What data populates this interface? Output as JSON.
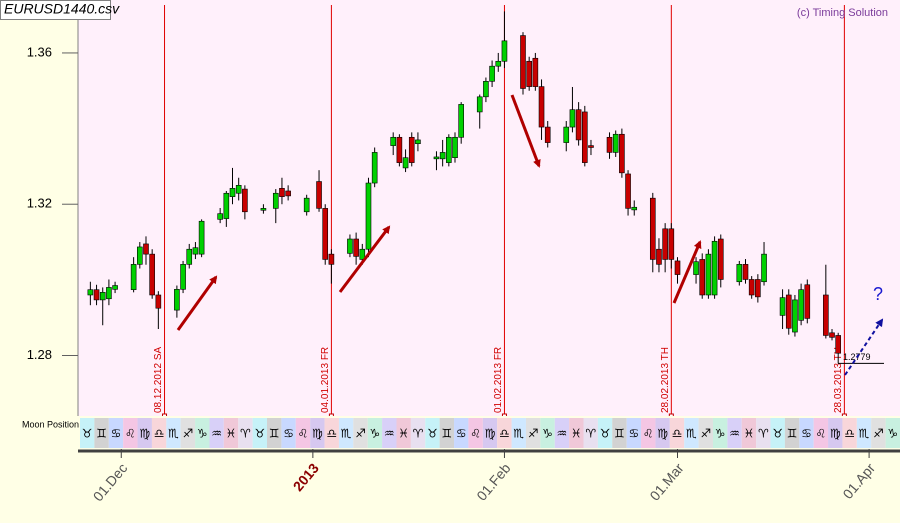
{
  "chart_data": {
    "type": "candlestick",
    "title": "EURUSD1440.csv",
    "credit": "(c) Timing Solution",
    "x": [
      "2012-11-26",
      "2012-11-27",
      "2012-11-28",
      "2012-11-29",
      "2012-11-30",
      "2012-12-03",
      "2012-12-04",
      "2012-12-05",
      "2012-12-06",
      "2012-12-07",
      "2012-12-10",
      "2012-12-11",
      "2012-12-12",
      "2012-12-13",
      "2012-12-14",
      "2012-12-17",
      "2012-12-18",
      "2012-12-19",
      "2012-12-20",
      "2012-12-21",
      "2012-12-24",
      "2012-12-26",
      "2012-12-27",
      "2012-12-28",
      "2012-12-31",
      "2013-01-02",
      "2013-01-03",
      "2013-01-04",
      "2013-01-07",
      "2013-01-08",
      "2013-01-09",
      "2013-01-10",
      "2013-01-11",
      "2013-01-14",
      "2013-01-15",
      "2013-01-16",
      "2013-01-17",
      "2013-01-18",
      "2013-01-21",
      "2013-01-22",
      "2013-01-23",
      "2013-01-24",
      "2013-01-25",
      "2013-01-28",
      "2013-01-29",
      "2013-01-30",
      "2013-01-31",
      "2013-02-01",
      "2013-02-04",
      "2013-02-05",
      "2013-02-06",
      "2013-02-07",
      "2013-02-08",
      "2013-02-11",
      "2013-02-12",
      "2013-02-13",
      "2013-02-14",
      "2013-02-15",
      "2013-02-18",
      "2013-02-19",
      "2013-02-20",
      "2013-02-21",
      "2013-02-22",
      "2013-02-25",
      "2013-02-26",
      "2013-02-27",
      "2013-02-28",
      "2013-03-01",
      "2013-03-04",
      "2013-03-05",
      "2013-03-06",
      "2013-03-07",
      "2013-03-08",
      "2013-03-11",
      "2013-03-12",
      "2013-03-13",
      "2013-03-14",
      "2013-03-15",
      "2013-03-18",
      "2013-03-19",
      "2013-03-20",
      "2013-03-21",
      "2013-03-22",
      "2013-03-25",
      "2013-03-26",
      "2013-03-27"
    ],
    "open": [
      1.296,
      1.2974,
      1.2947,
      1.295,
      1.2975,
      1.2974,
      1.3041,
      1.3095,
      1.3068,
      1.296,
      1.292,
      1.2975,
      1.3041,
      1.3068,
      1.3068,
      1.316,
      1.3162,
      1.322,
      1.3229,
      1.324,
      1.3184,
      1.3189,
      1.3242,
      1.3235,
      1.318,
      1.326,
      1.3189,
      1.3068,
      1.307,
      1.3108,
      1.3054,
      1.3081,
      1.3256,
      1.3355,
      1.3377,
      1.3296,
      1.3377,
      1.336,
      1.332,
      1.332,
      1.331,
      1.3323,
      1.3377,
      1.3444,
      1.3484,
      1.3525,
      1.3565,
      1.3578,
      1.3646,
      1.3578,
      1.3586,
      1.3511,
      1.3404,
      1.3363,
      1.3404,
      1.345,
      1.3444,
      1.3355,
      1.3377,
      1.3337,
      1.3385,
      1.328,
      1.3185,
      1.3216,
      1.3081,
      1.3135,
      1.3135,
      1.305,
      1.3014,
      1.3054,
      1.296,
      1.296,
      1.3108,
      1.2995,
      1.3041,
      1.3001,
      1.3001,
      1.2995,
      1.2906,
      1.296,
      1.2862,
      1.2893,
      1.2987,
      1.296,
      1.286,
      1.2853
    ],
    "high": [
      1.2995,
      1.2987,
      1.298,
      1.3001,
      1.2995,
      1.306,
      1.31,
      1.3115,
      1.3081,
      1.297,
      1.2985,
      1.305,
      1.3095,
      1.31,
      1.316,
      1.319,
      1.3235,
      1.3296,
      1.327,
      1.325,
      1.32,
      1.324,
      1.327,
      1.325,
      1.3225,
      1.329,
      1.32,
      1.3081,
      1.312,
      1.3125,
      1.3095,
      1.327,
      1.335,
      1.339,
      1.3385,
      1.3345,
      1.339,
      1.339,
      1.334,
      1.337,
      1.3385,
      1.339,
      1.347,
      1.349,
      1.3535,
      1.358,
      1.36,
      1.371,
      1.3655,
      1.359,
      1.36,
      1.353,
      1.342,
      1.342,
      1.351,
      1.347,
      1.346,
      1.337,
      1.339,
      1.3395,
      1.34,
      1.329,
      1.321,
      1.323,
      1.311,
      1.315,
      1.315,
      1.306,
      1.306,
      1.307,
      1.3081,
      1.3115,
      1.312,
      1.305,
      1.3055,
      1.301,
      1.3015,
      1.31,
      1.2975,
      1.2975,
      1.296,
      1.299,
      1.3001,
      1.304,
      1.287,
      1.286
    ],
    "low": [
      1.2933,
      1.2933,
      1.288,
      1.2933,
      1.2965,
      1.2967,
      1.303,
      1.304,
      1.295,
      1.287,
      1.29,
      1.2965,
      1.303,
      1.3055,
      1.306,
      1.315,
      1.314,
      1.32,
      1.321,
      1.316,
      1.3175,
      1.315,
      1.32,
      1.321,
      1.317,
      1.318,
      1.304,
      1.299,
      1.306,
      1.304,
      1.304,
      1.306,
      1.3245,
      1.333,
      1.33,
      1.3285,
      1.33,
      1.334,
      1.329,
      1.33,
      1.33,
      1.331,
      1.336,
      1.34,
      1.347,
      1.351,
      1.355,
      1.356,
      1.349,
      1.35,
      1.35,
      1.337,
      1.335,
      1.334,
      1.339,
      1.3355,
      1.33,
      1.333,
      1.332,
      1.3325,
      1.327,
      1.317,
      1.317,
      1.302,
      1.302,
      1.302,
      1.303,
      1.299,
      1.299,
      1.295,
      1.295,
      1.295,
      1.298,
      1.2985,
      1.299,
      1.295,
      1.294,
      1.2985,
      1.287,
      1.2855,
      1.285,
      1.288,
      1.2885,
      1.2845,
      1.284,
      1.2779
    ],
    "close": [
      1.2974,
      1.2947,
      1.2967,
      1.298,
      1.2985,
      1.3041,
      1.3087,
      1.3068,
      1.296,
      1.2925,
      1.2975,
      1.3041,
      1.3081,
      1.3085,
      1.3155,
      1.3175,
      1.3229,
      1.3242,
      1.325,
      1.318,
      1.3189,
      1.3229,
      1.322,
      1.3222,
      1.3216,
      1.3189,
      1.3054,
      1.3041,
      1.3108,
      1.3062,
      1.3081,
      1.3256,
      1.3337,
      1.3377,
      1.331,
      1.3323,
      1.331,
      1.337,
      1.3325,
      1.3337,
      1.3377,
      1.3377,
      1.3464,
      1.3484,
      1.3525,
      1.3565,
      1.3578,
      1.3632,
      1.3506,
      1.3511,
      1.3511,
      1.3404,
      1.3363,
      1.3404,
      1.345,
      1.337,
      1.331,
      1.335,
      1.3337,
      1.3385,
      1.3283,
      1.3189,
      1.3192,
      1.3054,
      1.3041,
      1.3054,
      1.3054,
      1.3014,
      1.3048,
      1.296,
      1.3068,
      1.3102,
      1.3001,
      1.3041,
      1.3001,
      1.296,
      1.2955,
      1.3068,
      1.2953,
      1.2872,
      1.2947,
      1.2974,
      1.2898,
      1.2853,
      1.2848,
      1.2806
    ],
    "up_color": "#00d000",
    "down_color": "#c80000",
    "xlim": [
      "2012-11-24",
      "2013-04-06"
    ],
    "xticks": [
      {
        "value": "2012-12-01",
        "label": "01.Dec"
      },
      {
        "value": "2013-01-01",
        "label": "2013"
      },
      {
        "value": "2013-02-01",
        "label": "01.Feb"
      },
      {
        "value": "2013-03-01",
        "label": "01.Mar"
      },
      {
        "value": "2013-04-01",
        "label": "01.Apr"
      }
    ],
    "ylim": [
      1.264,
      1.374
    ],
    "yticks": [
      1.28,
      1.32,
      1.36
    ],
    "grid": false,
    "last_price": 1.2779,
    "markers": [
      {
        "date": "2012-12-08",
        "label": "08.12.2012 SA"
      },
      {
        "date": "2013-01-04",
        "label": "04.01.2013 FR"
      },
      {
        "date": "2013-02-01",
        "label": "01.02.2013 FR"
      },
      {
        "date": "2013-02-28",
        "label": "28.02.2013 TH"
      },
      {
        "date": "2013-03-28",
        "label": "28.03.2013 TH"
      }
    ],
    "annotation": "?",
    "moon_position": {
      "label": "Moon Position",
      "signs": [
        "♉",
        "♊",
        "♋",
        "♌",
        "♍",
        "♎",
        "♏",
        "♐",
        "♑",
        "♒",
        "♓",
        "♈",
        "♉",
        "♊",
        "♋",
        "♌",
        "♍",
        "♎",
        "♏",
        "♐",
        "♑",
        "♒",
        "♓",
        "♈",
        "♉",
        "♊",
        "♋",
        "♌",
        "♍",
        "♎",
        "♏",
        "♐",
        "♑",
        "♒",
        "♓",
        "♈",
        "♉",
        "♊",
        "♋",
        "♌",
        "♍",
        "♎",
        "♏",
        "♐",
        "♑",
        "♒",
        "♓",
        "♈",
        "♉",
        "♊",
        "♋",
        "♌",
        "♍",
        "♎",
        "♏",
        "♐",
        "♑"
      ]
    }
  }
}
